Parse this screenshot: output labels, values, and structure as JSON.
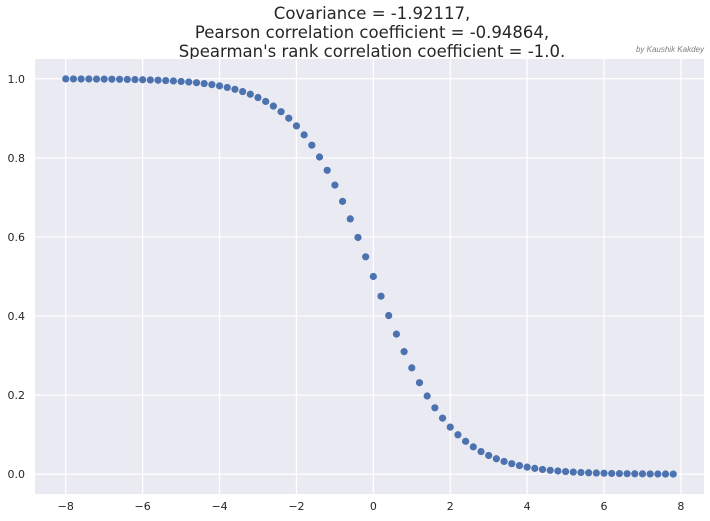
{
  "chart_data": {
    "type": "scatter",
    "title": [
      "Covariance = -1.92117,",
      "Pearson correlation coefficient = -0.94864,",
      "Spearman's rank correlation coefficient = -1.0."
    ],
    "credit": "by Kaushik Kakdey",
    "xlabel": "",
    "ylabel": "",
    "xlim": [
      -8.8,
      8.6
    ],
    "ylim": [
      -0.05,
      1.05
    ],
    "xticks": [
      -8,
      -6,
      -4,
      -2,
      0,
      2,
      4,
      6,
      8
    ],
    "yticks": [
      0.0,
      0.2,
      0.4,
      0.6,
      0.8,
      1.0
    ],
    "grid": true,
    "point_color": "#4c72b0",
    "background": "#eaeaf2",
    "x_start": -8.0,
    "x_step": 0.2,
    "x_count": 80,
    "function": "y = 1 / (1 + e^x)"
  }
}
